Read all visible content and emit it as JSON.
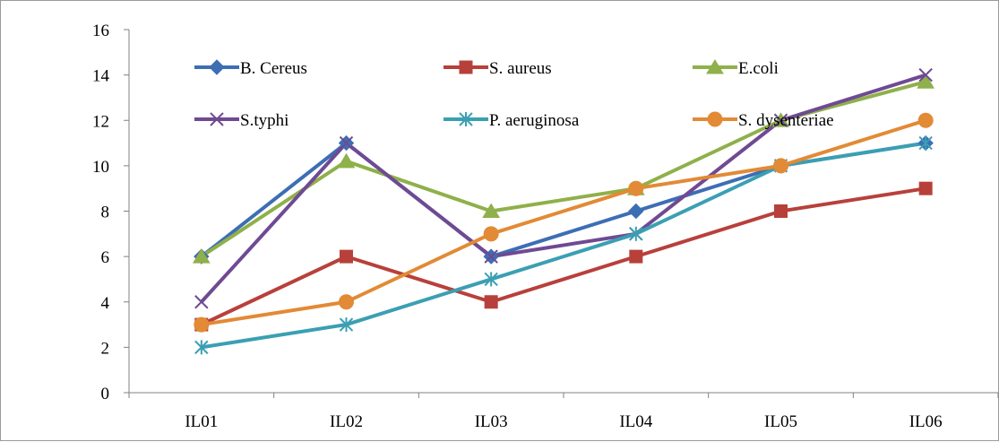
{
  "chart_data": {
    "type": "line",
    "categories": [
      "IL01",
      "IL02",
      "IL03",
      "IL04",
      "IL05",
      "IL06"
    ],
    "ylim": [
      0,
      16
    ],
    "yticks": [
      0,
      2,
      4,
      6,
      8,
      10,
      12,
      14,
      16
    ],
    "grid": false,
    "legend_position": "top",
    "series": [
      {
        "name": "B. Cereus",
        "color": "#3d6eb4",
        "marker": "diamond",
        "values": [
          6,
          11,
          6,
          8,
          10,
          11
        ]
      },
      {
        "name": "S. aureus",
        "color": "#b8403b",
        "marker": "square",
        "values": [
          3,
          6,
          4,
          6,
          8,
          9
        ]
      },
      {
        "name": "E.coli",
        "color": "#8fb04a",
        "marker": "triangle",
        "values": [
          6,
          10.2,
          8,
          9,
          12,
          13.7
        ]
      },
      {
        "name": "S.typhi",
        "color": "#6f4a93",
        "marker": "x",
        "values": [
          4,
          11,
          6,
          7,
          12,
          14
        ]
      },
      {
        "name": "P. aeruginosa",
        "color": "#3b9fb3",
        "marker": "asterisk",
        "values": [
          2,
          3,
          5,
          7,
          10,
          11
        ]
      },
      {
        "name": "S. dysenteriae",
        "color": "#e28a35",
        "marker": "circle",
        "values": [
          3,
          4,
          7,
          9,
          10,
          12
        ]
      }
    ]
  }
}
